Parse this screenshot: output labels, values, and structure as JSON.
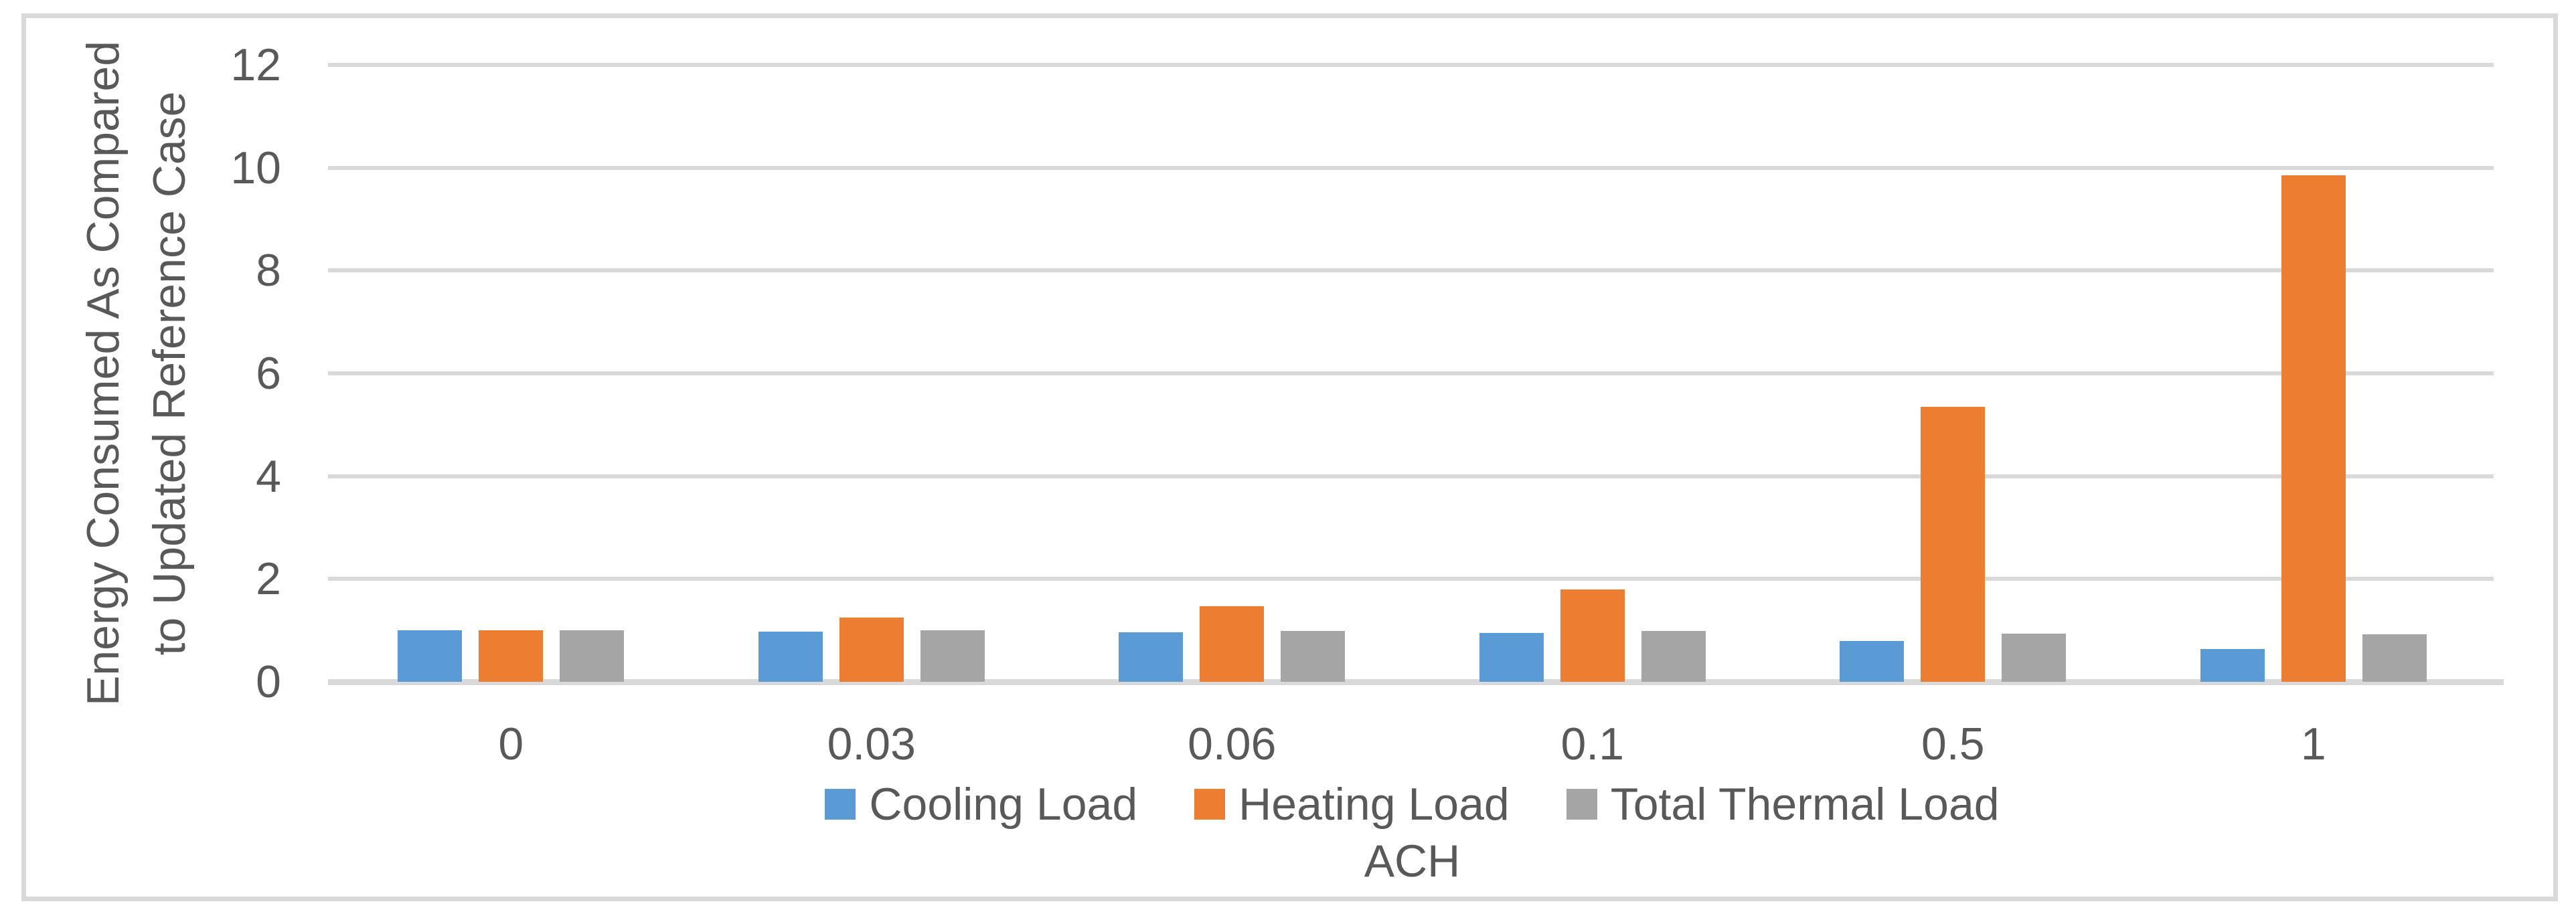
{
  "chart_data": {
    "type": "bar",
    "title": "",
    "xlabel": "ACH",
    "ylabel_lines": [
      "Energy Consumed As Compared",
      "to Updated Reference Case"
    ],
    "ylabel": "Energy Consumed As Compared to Updated Reference Case",
    "categories": [
      "0",
      "0.03",
      "0.06",
      "0.1",
      "0.5",
      "1"
    ],
    "series": [
      {
        "name": "Cooling Load",
        "color": "#5B9BD5",
        "values": [
          1.0,
          0.98,
          0.96,
          0.95,
          0.79,
          0.64
        ]
      },
      {
        "name": "Heating Load",
        "color": "#ED7D31",
        "values": [
          1.0,
          1.25,
          1.47,
          1.8,
          5.35,
          9.85
        ]
      },
      {
        "name": "Total Thermal Load",
        "color": "#A5A5A5",
        "values": [
          1.0,
          1.0,
          0.99,
          0.99,
          0.94,
          0.92
        ]
      }
    ],
    "ylim": [
      0,
      12
    ],
    "yticks": [
      0,
      2,
      4,
      6,
      8,
      10,
      12
    ],
    "grid": true,
    "legend_position": "bottom",
    "colors": {
      "gridline": "#D9D9D9",
      "axis_line": "#D9D9D9",
      "border": "#D9D9D9",
      "text": "#595959",
      "background": "#FFFFFF"
    }
  }
}
